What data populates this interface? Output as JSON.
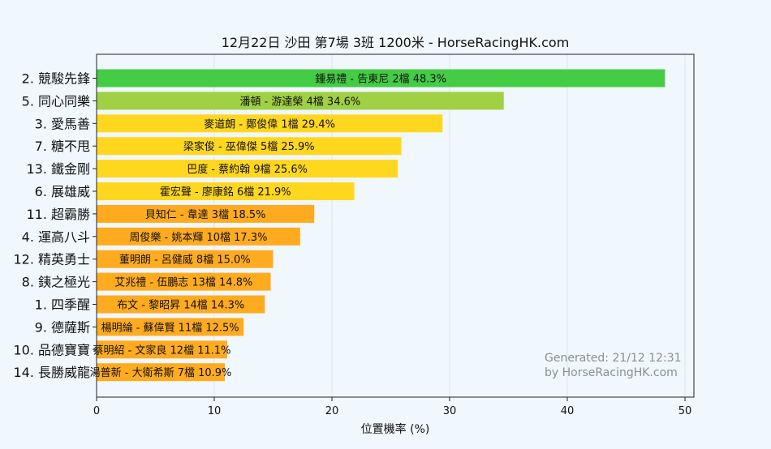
{
  "chart_data": {
    "type": "bar",
    "orientation": "horizontal",
    "title": "12月22日  沙田  第7場  3班  1200米 - HorseRacingHK.com",
    "xlabel": "位置機率 (%)",
    "ylabel": "",
    "xlim": [
      0,
      50.5
    ],
    "xticks": [
      0,
      10,
      20,
      30,
      40,
      50
    ],
    "grid": true,
    "categories": [
      "2. 競駿先鋒",
      "5. 同心同樂",
      "3. 愛馬善",
      "7. 糖不甩",
      "13. 鐵金剛",
      "6. 展雄威",
      "11. 超霸勝",
      "4. 運高八斗",
      "12. 精英勇士",
      "8. 銕之極光",
      "1. 四季醒",
      "9. 德薩斯",
      "10. 品德寶寶",
      "14. 長勝威龍"
    ],
    "bar_labels": [
      "鍾易禮 - 告東尼 2檔  48.3%",
      "潘頓 - 游達榮 4檔  34.6%",
      "麥道朗 - 鄭俊偉 1檔  29.4%",
      "梁家俊 - 巫偉傑 5檔  25.9%",
      "巴度 - 蔡約翰 9檔  25.6%",
      "霍宏聲 - 廖康銘 6檔  21.9%",
      "貝知仁 - 韋達 3檔  18.5%",
      "周俊樂 - 姚本輝 10檔  17.3%",
      "董明朗 - 呂健威 8檔  15.0%",
      "艾兆禮 - 伍鵬志 13檔  14.8%",
      "布文 - 黎昭昇 14檔  14.3%",
      "楊明綸 - 蘇偉賢 11檔  12.5%",
      "蔡明紹 - 文家良 12檔  11.1%",
      "湯普新 - 大衛希斯 7檔  10.9%"
    ],
    "values": [
      48.3,
      34.6,
      29.4,
      25.9,
      25.6,
      21.9,
      18.5,
      17.3,
      15.0,
      14.8,
      14.3,
      12.5,
      11.1,
      10.9
    ],
    "colors": [
      "#44cc44",
      "#a0d044",
      "#ffd71f",
      "#ffd71f",
      "#ffd71f",
      "#ffd71f",
      "#ffab1f",
      "#ffab1f",
      "#ffab1f",
      "#ffab1f",
      "#ffab1f",
      "#ffab1f",
      "#ffab1f",
      "#ffab1f"
    ],
    "watermark": [
      "Generated: 21/12 12:31",
      "by HorseRacingHK.com"
    ]
  }
}
